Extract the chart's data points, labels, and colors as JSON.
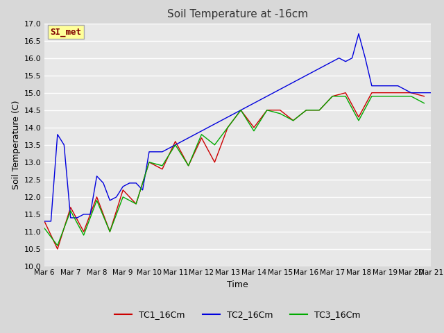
{
  "title": "Soil Temperature at -16cm",
  "xlabel": "Time",
  "ylabel": "Soil Temperature (C)",
  "ylim": [
    10.0,
    17.0
  ],
  "yticks": [
    10.0,
    10.5,
    11.0,
    11.5,
    12.0,
    12.5,
    13.0,
    13.5,
    14.0,
    14.5,
    15.0,
    15.5,
    16.0,
    16.5,
    17.0
  ],
  "bg_color": "#d8d8d8",
  "plot_bg_color": "#e8e8e8",
  "grid_color": "#ffffff",
  "annotation_text": "SI_met",
  "annotation_bg": "#ffff99",
  "annotation_fg": "#800000",
  "tc1": {
    "color": "#cc0000",
    "x": [
      0.0,
      0.5,
      1.0,
      1.5,
      2.0,
      2.5,
      3.0,
      3.5,
      4.0,
      4.5,
      5.0,
      5.5,
      6.0,
      6.5,
      7.0,
      7.5,
      8.0,
      8.5,
      9.0,
      9.5,
      10.0,
      10.5,
      11.0,
      11.5,
      12.0,
      12.5,
      13.0,
      13.5,
      14.0,
      14.5
    ],
    "y": [
      11.3,
      10.5,
      11.7,
      11.0,
      12.0,
      11.0,
      12.2,
      11.8,
      13.0,
      12.8,
      13.6,
      12.9,
      13.7,
      13.0,
      14.0,
      14.5,
      14.0,
      14.5,
      14.5,
      14.2,
      14.5,
      14.5,
      14.9,
      15.0,
      14.3,
      15.0,
      15.0,
      15.0,
      15.0,
      14.9
    ]
  },
  "tc2": {
    "color": "#0000dd",
    "x": [
      0.0,
      0.25,
      0.5,
      0.75,
      1.0,
      1.25,
      1.5,
      1.75,
      2.0,
      2.25,
      2.5,
      2.75,
      3.0,
      3.25,
      3.5,
      3.75,
      4.0,
      4.25,
      4.5,
      4.75,
      5.0,
      5.25,
      5.5,
      5.75,
      6.0,
      6.25,
      6.5,
      6.75,
      7.0,
      7.25,
      7.5,
      7.75,
      8.0,
      8.25,
      8.5,
      8.75,
      9.0,
      9.25,
      9.5,
      9.75,
      10.0,
      10.25,
      10.5,
      10.75,
      11.0,
      11.25,
      11.5,
      11.75,
      12.0,
      12.25,
      12.5,
      12.75,
      13.0,
      13.25,
      13.5,
      13.75,
      14.0,
      14.25,
      14.5,
      14.75
    ],
    "y": [
      11.3,
      11.3,
      13.8,
      13.5,
      11.4,
      11.4,
      11.5,
      11.5,
      12.6,
      12.4,
      11.9,
      12.0,
      12.3,
      12.4,
      12.4,
      12.2,
      13.3,
      13.3,
      13.3,
      13.4,
      13.5,
      13.6,
      13.7,
      13.8,
      13.9,
      14.0,
      14.1,
      14.2,
      14.3,
      14.4,
      14.5,
      14.6,
      14.7,
      14.8,
      14.9,
      15.0,
      15.1,
      15.2,
      15.3,
      15.4,
      15.5,
      15.6,
      15.7,
      15.8,
      15.9,
      16.0,
      15.9,
      16.0,
      16.7,
      16.0,
      15.2,
      15.2,
      15.2,
      15.2,
      15.2,
      15.1,
      15.0,
      15.0,
      15.0,
      15.0
    ]
  },
  "tc3": {
    "color": "#00aa00",
    "x": [
      0.0,
      0.5,
      1.0,
      1.5,
      2.0,
      2.5,
      3.0,
      3.5,
      4.0,
      4.5,
      5.0,
      5.5,
      6.0,
      6.5,
      7.0,
      7.5,
      8.0,
      8.5,
      9.0,
      9.5,
      10.0,
      10.5,
      11.0,
      11.5,
      12.0,
      12.5,
      13.0,
      13.5,
      14.0,
      14.5
    ],
    "y": [
      11.1,
      10.6,
      11.6,
      10.9,
      11.9,
      11.0,
      12.0,
      11.8,
      13.0,
      12.9,
      13.5,
      12.9,
      13.8,
      13.5,
      14.0,
      14.5,
      13.9,
      14.5,
      14.4,
      14.2,
      14.5,
      14.5,
      14.9,
      14.9,
      14.2,
      14.9,
      14.9,
      14.9,
      14.9,
      14.7
    ]
  },
  "xtick_positions": [
    0,
    1,
    2,
    3,
    4,
    5,
    6,
    7,
    8,
    9,
    10,
    11,
    12,
    13,
    14,
    14.75
  ],
  "xtick_labels": [
    "Mar 6",
    "Mar 7",
    "Mar 8",
    "Mar 9",
    "Mar 10",
    "Mar 11",
    "Mar 12",
    "Mar 13",
    "Mar 14",
    "Mar 15",
    "Mar 16",
    "Mar 17",
    "Mar 18",
    "Mar 19",
    "Mar 20",
    "Mar 21"
  ],
  "legend": [
    {
      "label": "TC1_16Cm",
      "color": "#cc0000"
    },
    {
      "label": "TC2_16Cm",
      "color": "#0000dd"
    },
    {
      "label": "TC3_16Cm",
      "color": "#00aa00"
    }
  ],
  "figsize": [
    6.4,
    4.8
  ],
  "dpi": 100
}
